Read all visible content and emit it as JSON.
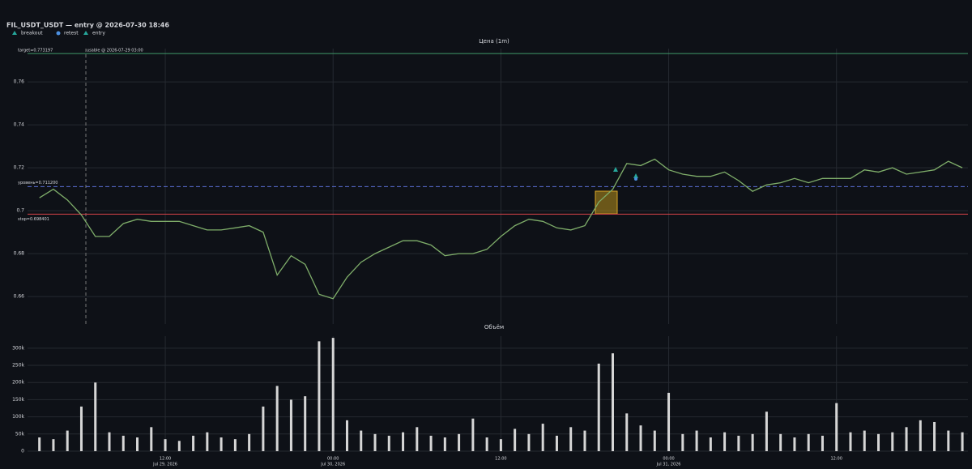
{
  "title": "FIL_USDT_USDT — entry @ 2026-07-30 18:46",
  "legend": [
    {
      "name": "breakout",
      "color": "#26a69a",
      "marker": "triangle"
    },
    {
      "name": "retest",
      "color": "#4c8fe0",
      "marker": "circle"
    },
    {
      "name": "entry",
      "color": "#26a69a",
      "marker": "triangle"
    }
  ],
  "annotation": "usable @ 2026-07-29 03:00",
  "chart_data": [
    {
      "type": "line",
      "title": "Цена (1m)",
      "x": [
        "2026-07-29 03:00",
        "2026-07-29 04:00",
        "2026-07-29 05:00",
        "2026-07-29 06:00",
        "2026-07-29 07:00",
        "2026-07-29 08:00",
        "2026-07-29 09:00",
        "2026-07-29 10:00",
        "2026-07-29 11:00",
        "2026-07-29 12:00",
        "2026-07-29 13:00",
        "2026-07-29 14:00",
        "2026-07-29 15:00",
        "2026-07-29 16:00",
        "2026-07-29 17:00",
        "2026-07-29 18:00",
        "2026-07-29 19:00",
        "2026-07-29 20:00",
        "2026-07-29 21:00",
        "2026-07-29 22:00",
        "2026-07-29 23:00",
        "2026-07-30 00:00",
        "2026-07-30 01:00",
        "2026-07-30 02:00",
        "2026-07-30 03:00",
        "2026-07-30 04:00",
        "2026-07-30 05:00",
        "2026-07-30 06:00",
        "2026-07-30 07:00",
        "2026-07-30 08:00",
        "2026-07-30 09:00",
        "2026-07-30 10:00",
        "2026-07-30 11:00",
        "2026-07-30 12:00",
        "2026-07-30 13:00",
        "2026-07-30 14:00",
        "2026-07-30 15:00",
        "2026-07-30 16:00",
        "2026-07-30 17:00",
        "2026-07-30 18:00",
        "2026-07-30 19:00",
        "2026-07-30 20:00",
        "2026-07-30 21:00",
        "2026-07-30 22:00",
        "2026-07-30 23:00",
        "2026-07-31 00:00",
        "2026-07-31 01:00",
        "2026-07-31 02:00",
        "2026-07-31 03:00",
        "2026-07-31 04:00",
        "2026-07-31 05:00",
        "2026-07-31 06:00",
        "2026-07-31 07:00",
        "2026-07-31 08:00",
        "2026-07-31 09:00",
        "2026-07-31 10:00",
        "2026-07-31 11:00",
        "2026-07-31 12:00",
        "2026-07-31 13:00",
        "2026-07-31 14:00",
        "2026-07-31 15:00",
        "2026-07-31 16:00",
        "2026-07-31 17:00",
        "2026-07-31 18:00",
        "2026-07-31 19:00",
        "2026-07-31 20:00",
        "2026-07-31 21:00"
      ],
      "series": [
        {
          "color": "#7fae6a",
          "values": [
            0.706,
            0.71,
            0.705,
            0.698,
            0.688,
            0.688,
            0.694,
            0.696,
            0.695,
            0.695,
            0.695,
            0.693,
            0.691,
            0.691,
            0.692,
            0.693,
            0.69,
            0.67,
            0.679,
            0.675,
            0.661,
            0.659,
            0.669,
            0.676,
            0.68,
            0.683,
            0.686,
            0.686,
            0.684,
            0.679,
            0.68,
            0.68,
            0.682,
            0.688,
            0.693,
            0.696,
            0.695,
            0.692,
            0.691,
            0.693,
            0.704,
            0.71,
            0.722,
            0.721,
            0.724,
            0.719,
            0.717,
            0.716,
            0.716,
            0.718,
            0.714,
            0.709,
            0.712,
            0.713,
            0.715,
            0.713,
            0.715,
            0.715,
            0.715,
            0.719,
            0.718,
            0.72,
            0.717,
            0.718,
            0.719,
            0.723,
            0.72
          ]
        }
      ],
      "xlim": [
        "2026-07-29 02:09",
        "2026-07-31 21:24"
      ],
      "ylim": [
        0.6472,
        0.7755
      ],
      "yticks": [
        0.66,
        0.68,
        0.7,
        0.72,
        0.74,
        0.76
      ],
      "grid": true,
      "levels": [
        {
          "label": "target=0.773197",
          "value": 0.773197,
          "color": "#3f9a6a",
          "dash": "solid"
        },
        {
          "label": "уровень=0.711200",
          "value": 0.7112,
          "color": "#5b6fd6",
          "dash": "dashed"
        },
        {
          "label": "stop=0.698401",
          "value": 0.698401,
          "color": "#d9434a",
          "dash": "solid"
        }
      ]
    },
    {
      "type": "bar",
      "title": "Объём",
      "x": [
        "2026-07-29 03:00",
        "2026-07-29 04:00",
        "2026-07-29 05:00",
        "2026-07-29 06:00",
        "2026-07-29 07:00",
        "2026-07-29 08:00",
        "2026-07-29 09:00",
        "2026-07-29 10:00",
        "2026-07-29 11:00",
        "2026-07-29 12:00",
        "2026-07-29 13:00",
        "2026-07-29 14:00",
        "2026-07-29 15:00",
        "2026-07-29 16:00",
        "2026-07-29 17:00",
        "2026-07-29 18:00",
        "2026-07-29 19:00",
        "2026-07-29 20:00",
        "2026-07-29 21:00",
        "2026-07-29 22:00",
        "2026-07-29 23:00",
        "2026-07-30 00:00",
        "2026-07-30 01:00",
        "2026-07-30 02:00",
        "2026-07-30 03:00",
        "2026-07-30 04:00",
        "2026-07-30 05:00",
        "2026-07-30 06:00",
        "2026-07-30 07:00",
        "2026-07-30 08:00",
        "2026-07-30 09:00",
        "2026-07-30 10:00",
        "2026-07-30 11:00",
        "2026-07-30 12:00",
        "2026-07-30 13:00",
        "2026-07-30 14:00",
        "2026-07-30 15:00",
        "2026-07-30 16:00",
        "2026-07-30 17:00",
        "2026-07-30 18:00",
        "2026-07-30 19:00",
        "2026-07-30 20:00",
        "2026-07-30 21:00",
        "2026-07-30 22:00",
        "2026-07-30 23:00",
        "2026-07-31 00:00",
        "2026-07-31 01:00",
        "2026-07-31 02:00",
        "2026-07-31 03:00",
        "2026-07-31 04:00",
        "2026-07-31 05:00",
        "2026-07-31 06:00",
        "2026-07-31 07:00",
        "2026-07-31 08:00",
        "2026-07-31 09:00",
        "2026-07-31 10:00",
        "2026-07-31 11:00",
        "2026-07-31 12:00",
        "2026-07-31 13:00",
        "2026-07-31 14:00",
        "2026-07-31 15:00",
        "2026-07-31 16:00",
        "2026-07-31 17:00",
        "2026-07-31 18:00",
        "2026-07-31 19:00",
        "2026-07-31 20:00",
        "2026-07-31 21:00"
      ],
      "values": [
        40000,
        35000,
        60000,
        130000,
        200000,
        55000,
        45000,
        40000,
        70000,
        35000,
        30000,
        45000,
        55000,
        40000,
        35000,
        50000,
        130000,
        190000,
        150000,
        160000,
        320000,
        330000,
        90000,
        60000,
        50000,
        45000,
        55000,
        70000,
        45000,
        40000,
        50000,
        95000,
        40000,
        35000,
        65000,
        50000,
        80000,
        45000,
        70000,
        60000,
        255000,
        285000,
        110000,
        75000,
        60000,
        170000,
        50000,
        60000,
        40000,
        55000,
        45000,
        50000,
        115000,
        50000,
        40000,
        50000,
        45000,
        140000,
        55000,
        60000,
        50000,
        55000,
        70000,
        90000,
        85000,
        60000,
        55000
      ],
      "color": "#d6d6d6",
      "xlim": [
        "2026-07-29 02:09",
        "2026-07-31 21:24"
      ],
      "ylim": [
        0,
        335000
      ],
      "yticks": [
        0,
        {
          "value": 50000,
          "label": "50k"
        },
        {
          "value": 100000,
          "label": "100k"
        },
        {
          "value": 150000,
          "label": "150k"
        },
        {
          "value": 200000,
          "label": "200k"
        },
        {
          "value": 250000,
          "label": "250k"
        },
        {
          "value": 300000,
          "label": "300k"
        }
      ],
      "xticks": [
        {
          "value": "2026-07-29 12:00",
          "label": [
            "12:00",
            "Jul 29, 2026"
          ]
        },
        {
          "value": "2026-07-30 00:00",
          "label": [
            "00:00",
            "Jul 30, 2026"
          ]
        },
        {
          "value": "2026-07-30 12:00",
          "label": [
            "12:00"
          ]
        },
        {
          "value": "2026-07-31 00:00",
          "label": [
            "00:00",
            "Jul 31, 2026"
          ]
        },
        {
          "value": "2026-07-31 12:00",
          "label": [
            "12:00"
          ]
        }
      ],
      "grid": true
    }
  ]
}
